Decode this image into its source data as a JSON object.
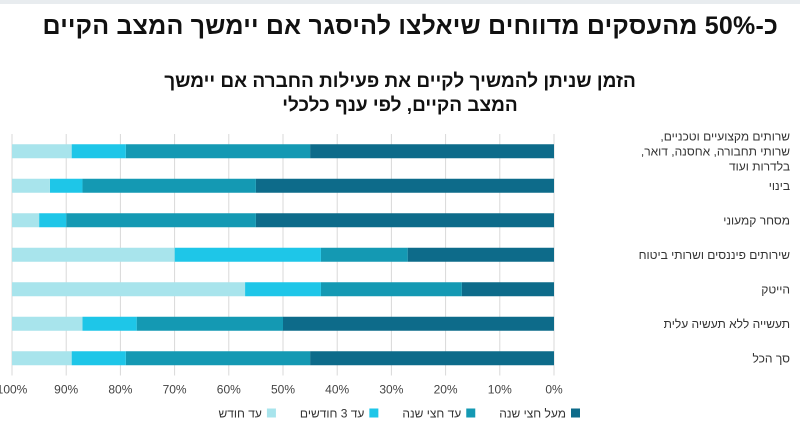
{
  "page": {
    "headline": "כ-50% מהעסקים מדווחים שיאלצו להיסגר אם יימשך המצב הקיים"
  },
  "chart_data": {
    "type": "bar",
    "orientation": "horizontal",
    "stacked": true,
    "percent_stacked": true,
    "x_direction": "right-to-left",
    "title": "הזמן שניתן להמשיך לקיים את פעילות החברה אם יימשך המצב הקיים, לפי ענף כלכלי",
    "xlim": [
      0,
      100
    ],
    "x_ticks": [
      "0%",
      "10%",
      "20%",
      "30%",
      "40%",
      "50%",
      "60%",
      "70%",
      "80%",
      "90%",
      "100%"
    ],
    "grid": true,
    "legend_position": "bottom",
    "categories": [
      "שרותים מקצועיים וטכניים, שרותי תחבורה, אחסנה, דואר, בלדרות ועוד",
      "בינוי",
      "מסחר קמעוני",
      "שירותים פיננסים ושרותי ביטוח",
      "הייטק",
      "תעשייה ללא תעשיה עלית",
      "סך הכל"
    ],
    "series": [
      {
        "name": "מעל חצי שנה",
        "color": "#0d6b8a",
        "values": [
          45,
          55,
          55,
          27,
          17,
          50,
          45
        ]
      },
      {
        "name": "עד חצי שנה",
        "color": "#1499b3",
        "values": [
          34,
          32,
          35,
          16,
          26,
          27,
          34
        ]
      },
      {
        "name": "עד 3 חודשים",
        "color": "#1ec6e8",
        "values": [
          10,
          6,
          5,
          27,
          14,
          10,
          10
        ]
      },
      {
        "name": "עד חודש",
        "color": "#a8e4ec",
        "values": [
          11,
          7,
          5,
          30,
          43,
          13,
          11
        ]
      }
    ]
  }
}
